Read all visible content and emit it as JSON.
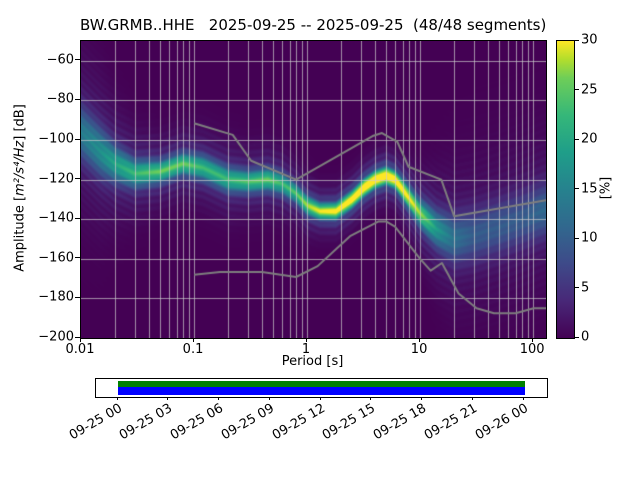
{
  "title": "BW.GRMB..HHE   2025-09-25 -- 2025-09-25  (48/48 segments)",
  "axes": {
    "xlabel": "Period [s]",
    "ylabel_prefix": "Amplitude [",
    "ylabel_math": "m²/s⁴/Hz",
    "ylabel_suffix": "] [dB]",
    "x_ticks": [
      {
        "value": 0.01,
        "label": "0.01"
      },
      {
        "value": 0.1,
        "label": "0.1"
      },
      {
        "value": 1,
        "label": "1"
      },
      {
        "value": 10,
        "label": "10"
      },
      {
        "value": 100,
        "label": "100"
      }
    ],
    "y_ticks": [
      {
        "value": -60,
        "label": "−60"
      },
      {
        "value": -80,
        "label": "−80"
      },
      {
        "value": -100,
        "label": "−100"
      },
      {
        "value": -120,
        "label": "−120"
      },
      {
        "value": -140,
        "label": "−140"
      },
      {
        "value": -160,
        "label": "−160"
      },
      {
        "value": -180,
        "label": "−180"
      },
      {
        "value": -200,
        "label": "−200"
      }
    ]
  },
  "colorbar": {
    "label": "[%]",
    "min": 0,
    "max": 30,
    "ticks": [
      0,
      5,
      10,
      15,
      20,
      25,
      30
    ],
    "colormap": "viridis"
  },
  "timeline": {
    "ticks": [
      "09-25 00",
      "09-25 03",
      "09-25 06",
      "09-25 09",
      "09-25 12",
      "09-25 15",
      "09-25 18",
      "09-25 21",
      "09-26 00"
    ]
  },
  "chart_data": {
    "type": "heatmap",
    "description": "ObsPy probabilistic power spectral density (PPSD): probability [%] of PSD amplitude vs period for seismic channel BW.GRMB..HHE",
    "station": "BW.GRMB..HHE",
    "date_range": "2025-09-25 -- 2025-09-25",
    "segments": "48/48",
    "title": "BW.GRMB..HHE   2025-09-25 -- 2025-09-25  (48/48 segments)",
    "xlabel": "Period [s]",
    "ylabel": "Amplitude [m^2/s^4/Hz] [dB]",
    "x_axis": {
      "scale": "log",
      "range_s": [
        0.01,
        130
      ],
      "ticks": [
        0.01,
        0.1,
        1,
        10,
        100
      ],
      "grid": true
    },
    "y_axis": {
      "range_db": [
        -200,
        -50
      ],
      "ticks": [
        -60,
        -80,
        -100,
        -120,
        -140,
        -160,
        -180,
        -200
      ],
      "grid": true
    },
    "probability_range_pct": [
      0,
      30
    ],
    "colormap": "viridis",
    "mode_curve": {
      "period_s": [
        0.01,
        0.015,
        0.02,
        0.03,
        0.05,
        0.08,
        0.12,
        0.2,
        0.3,
        0.45,
        0.6,
        0.8,
        1.0,
        1.3,
        1.8,
        2.5,
        3.2,
        4.0,
        5.0,
        6.0,
        7.0,
        10,
        14,
        20,
        30,
        50,
        80,
        120,
        150
      ],
      "db": [
        -96,
        -106,
        -112,
        -117,
        -116,
        -112,
        -114,
        -120,
        -121,
        -120,
        -122,
        -127,
        -133,
        -136,
        -136,
        -130,
        -124,
        -120,
        -118,
        -120,
        -125,
        -137,
        -145,
        -150,
        -148,
        -144,
        -140,
        -136,
        -134
      ],
      "spread_db": [
        9,
        8,
        6,
        4.5,
        3.5,
        3.5,
        4,
        4,
        3.5,
        3.5,
        3.5,
        3,
        3,
        2.5,
        2.5,
        2.5,
        2.5,
        2.5,
        2.5,
        2.5,
        3,
        4,
        6,
        8,
        9,
        9,
        9,
        9,
        9
      ],
      "peak_probability_pct": [
        10,
        12,
        14,
        16,
        18,
        18,
        16,
        16,
        17,
        18,
        16,
        17,
        20,
        23,
        25,
        28,
        30,
        30,
        30,
        29,
        26,
        20,
        13,
        9,
        7,
        7,
        7,
        8,
        8
      ]
    },
    "noise_models": {
      "high": {
        "name": "NHNM",
        "period_s": [
          0.1,
          0.22,
          0.32,
          0.8,
          3.8,
          4.6,
          6.3,
          7.9,
          15.4,
          20,
          130
        ],
        "db": [
          -91.5,
          -97.4,
          -110.5,
          -120,
          -98,
          -96.5,
          -101,
          -113.5,
          -120,
          -138.5,
          -130.4
        ]
      },
      "low": {
        "name": "NLNM",
        "period_s": [
          0.1,
          0.17,
          0.4,
          0.8,
          1.24,
          2.4,
          4.3,
          5.0,
          6.0,
          10.0,
          12.4,
          15.6,
          21.9,
          31.6,
          45,
          70,
          101,
          130
        ],
        "db": [
          -168,
          -166.7,
          -166.7,
          -169.2,
          -163.7,
          -148.6,
          -141.1,
          -141.1,
          -143.8,
          -160.0,
          -166.0,
          -162.1,
          -177.5,
          -185.0,
          -187.5,
          -187.5,
          -185.0,
          -185.0
        ]
      }
    },
    "time_coverage": {
      "tick_labels": [
        "09-25 00",
        "09-25 03",
        "09-25 06",
        "09-25 09",
        "09-25 12",
        "09-25 15",
        "09-25 18",
        "09-25 21",
        "09-26 00"
      ],
      "bar_colors": [
        "#008000",
        "#0000ff"
      ],
      "covered": "full day"
    }
  }
}
